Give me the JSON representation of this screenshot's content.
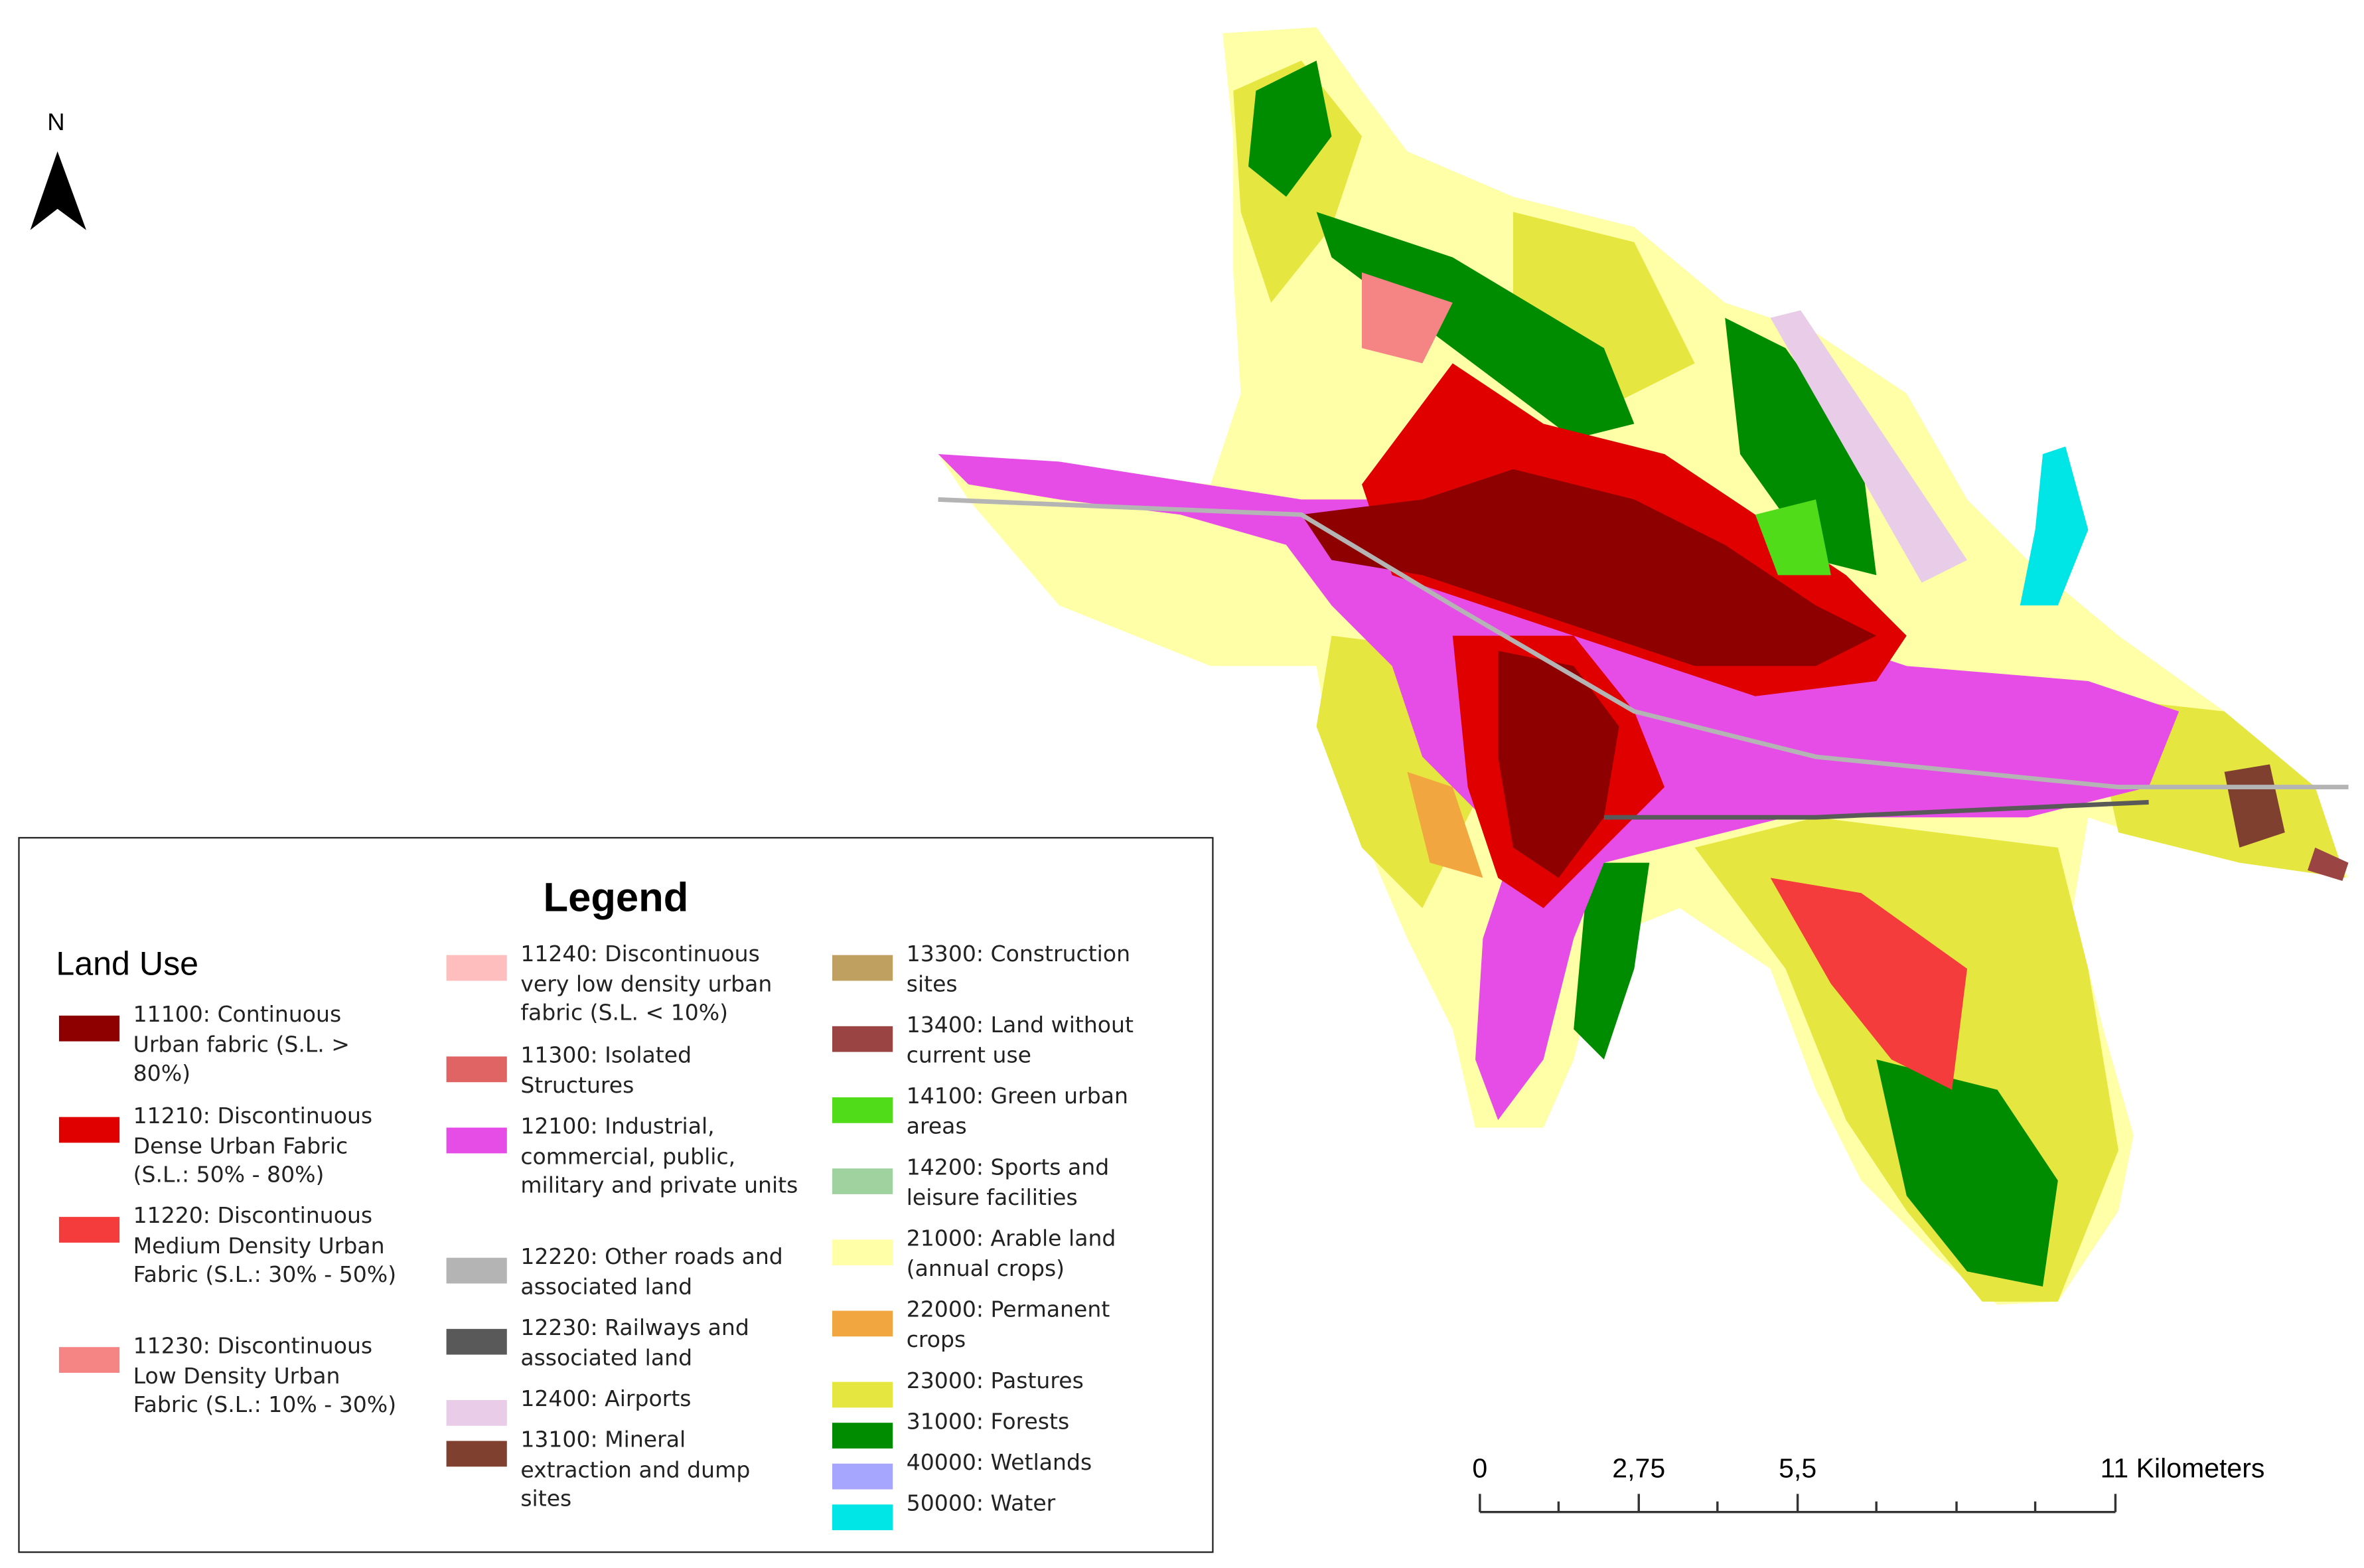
{
  "north": "N",
  "legend": {
    "title": "Legend",
    "subtitle": "Land Use",
    "items": [
      {
        "label": "11100: Continuous Urban fabric (S.L. > 80%)",
        "color": "#8e0000"
      },
      {
        "label": "11210: Discontinuous Dense Urban Fabric (S.L.: 50% - 80%)",
        "color": "#e00000"
      },
      {
        "label": "11220: Discontinuous Medium Density Urban Fabric (S.L.: 30% - 50%)",
        "color": "#f53c3c"
      },
      {
        "label": "11230: Discontinuous Low Density Urban Fabric (S.L.: 10% - 30%)",
        "color": "#f58484"
      },
      {
        "label": "11240: Discontinuous very low density urban fabric (S.L. < 10%)",
        "color": "#ffbebe"
      },
      {
        "label": "11300: Isolated Structures",
        "color": "#e06464"
      },
      {
        "label": "12100: Industrial, commercial, public, military and private units",
        "color": "#e64ce6"
      },
      {
        "label": "12220: Other roads and associated land",
        "color": "#b4b4b4"
      },
      {
        "label": "12230: Railways and associated land",
        "color": "#595959"
      },
      {
        "label": "12400: Airports",
        "color": "#e8cce8"
      },
      {
        "label": "13100: Mineral extraction and dump sites",
        "color": "#804030"
      },
      {
        "label": "13300: Construction sites",
        "color": "#bfa060"
      },
      {
        "label": "13400: Land without current use",
        "color": "#9a4444"
      },
      {
        "label": "14100: Green urban areas",
        "color": "#50dc18"
      },
      {
        "label": "14200: Sports and leisure facilities",
        "color": "#a0d2a0"
      },
      {
        "label": "21000: Arable land (annual crops)",
        "color": "#ffffa8"
      },
      {
        "label": "22000: Permanent crops",
        "color": "#f2a640"
      },
      {
        "label": "23000: Pastures",
        "color": "#e6e640"
      },
      {
        "label": "31000: Forests",
        "color": "#008c00"
      },
      {
        "label": "40000: Wetlands",
        "color": "#a6a6ff"
      },
      {
        "label": "50000: Water",
        "color": "#00e6e6"
      }
    ]
  },
  "scale_bar": {
    "labels": [
      "0",
      "2,75",
      "5,5",
      "11 Kilometers"
    ]
  }
}
